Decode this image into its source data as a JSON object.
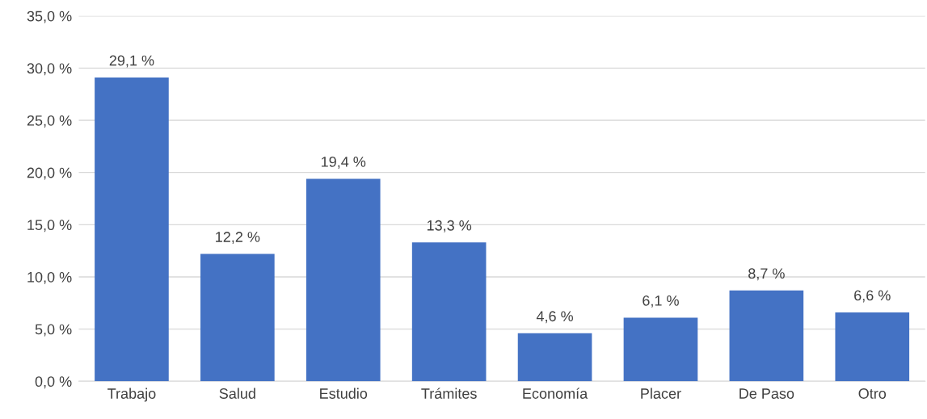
{
  "chart_data": {
    "type": "bar",
    "categories": [
      "Trabajo",
      "Salud",
      "Estudio",
      "Trámites",
      "Economía",
      "Placer",
      "De Paso",
      "Otro"
    ],
    "values": [
      29.1,
      12.2,
      19.4,
      13.3,
      4.6,
      6.1,
      8.7,
      6.6
    ],
    "value_labels": [
      "29,1 %",
      "12,2 %",
      "19,4 %",
      "13,3 %",
      "4,6 %",
      "6,1 %",
      "8,7 %",
      "6,6 %"
    ],
    "color": "#4472c4",
    "ylim": [
      0,
      35
    ],
    "yticks": [
      {
        "value": 0,
        "label": "0,0 %"
      },
      {
        "value": 5,
        "label": "5,0 %"
      },
      {
        "value": 10,
        "label": "10,0 %"
      },
      {
        "value": 15,
        "label": "15,0 %"
      },
      {
        "value": 20,
        "label": "20,0 %"
      },
      {
        "value": 25,
        "label": "25,0 %"
      },
      {
        "value": 30,
        "label": "30,0 %"
      },
      {
        "value": 35,
        "label": "35,0 %"
      }
    ],
    "grid": "y"
  }
}
